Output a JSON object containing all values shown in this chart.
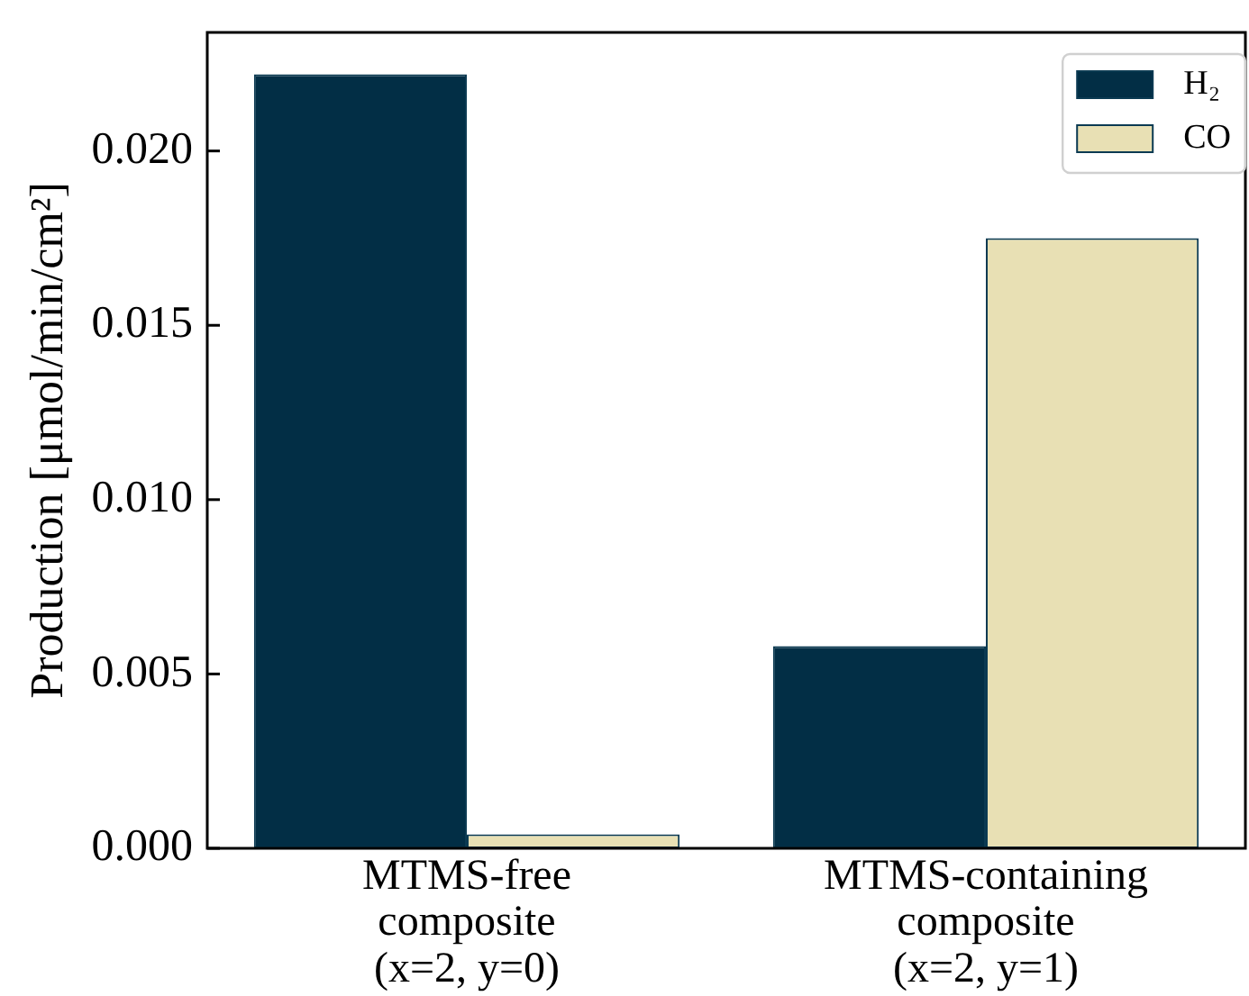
{
  "chart_data": {
    "type": "bar",
    "ylabel": "Production [μmol/min/cm²]",
    "categories": [
      "MTMS-free\ncomposite\n(x=2, y=0)",
      "MTMS-containing\ncomposite\n(x=2, y=1)"
    ],
    "series": [
      {
        "name": "H₂",
        "color": "#022e45",
        "values": [
          0.0222,
          0.0058
        ]
      },
      {
        "name": "CO",
        "color": "#e8e0b4",
        "values": [
          0.0004,
          0.0175
        ]
      }
    ],
    "ylim": [
      0,
      0.0234
    ],
    "yticks": [
      {
        "value": 0,
        "label": "0.000"
      },
      {
        "value": 0.005,
        "label": "0.005"
      },
      {
        "value": 0.01,
        "label": "0.010"
      },
      {
        "value": 0.015,
        "label": "0.015"
      },
      {
        "value": 0.02,
        "label": "0.020"
      }
    ],
    "grid": false,
    "legend": "top right"
  }
}
